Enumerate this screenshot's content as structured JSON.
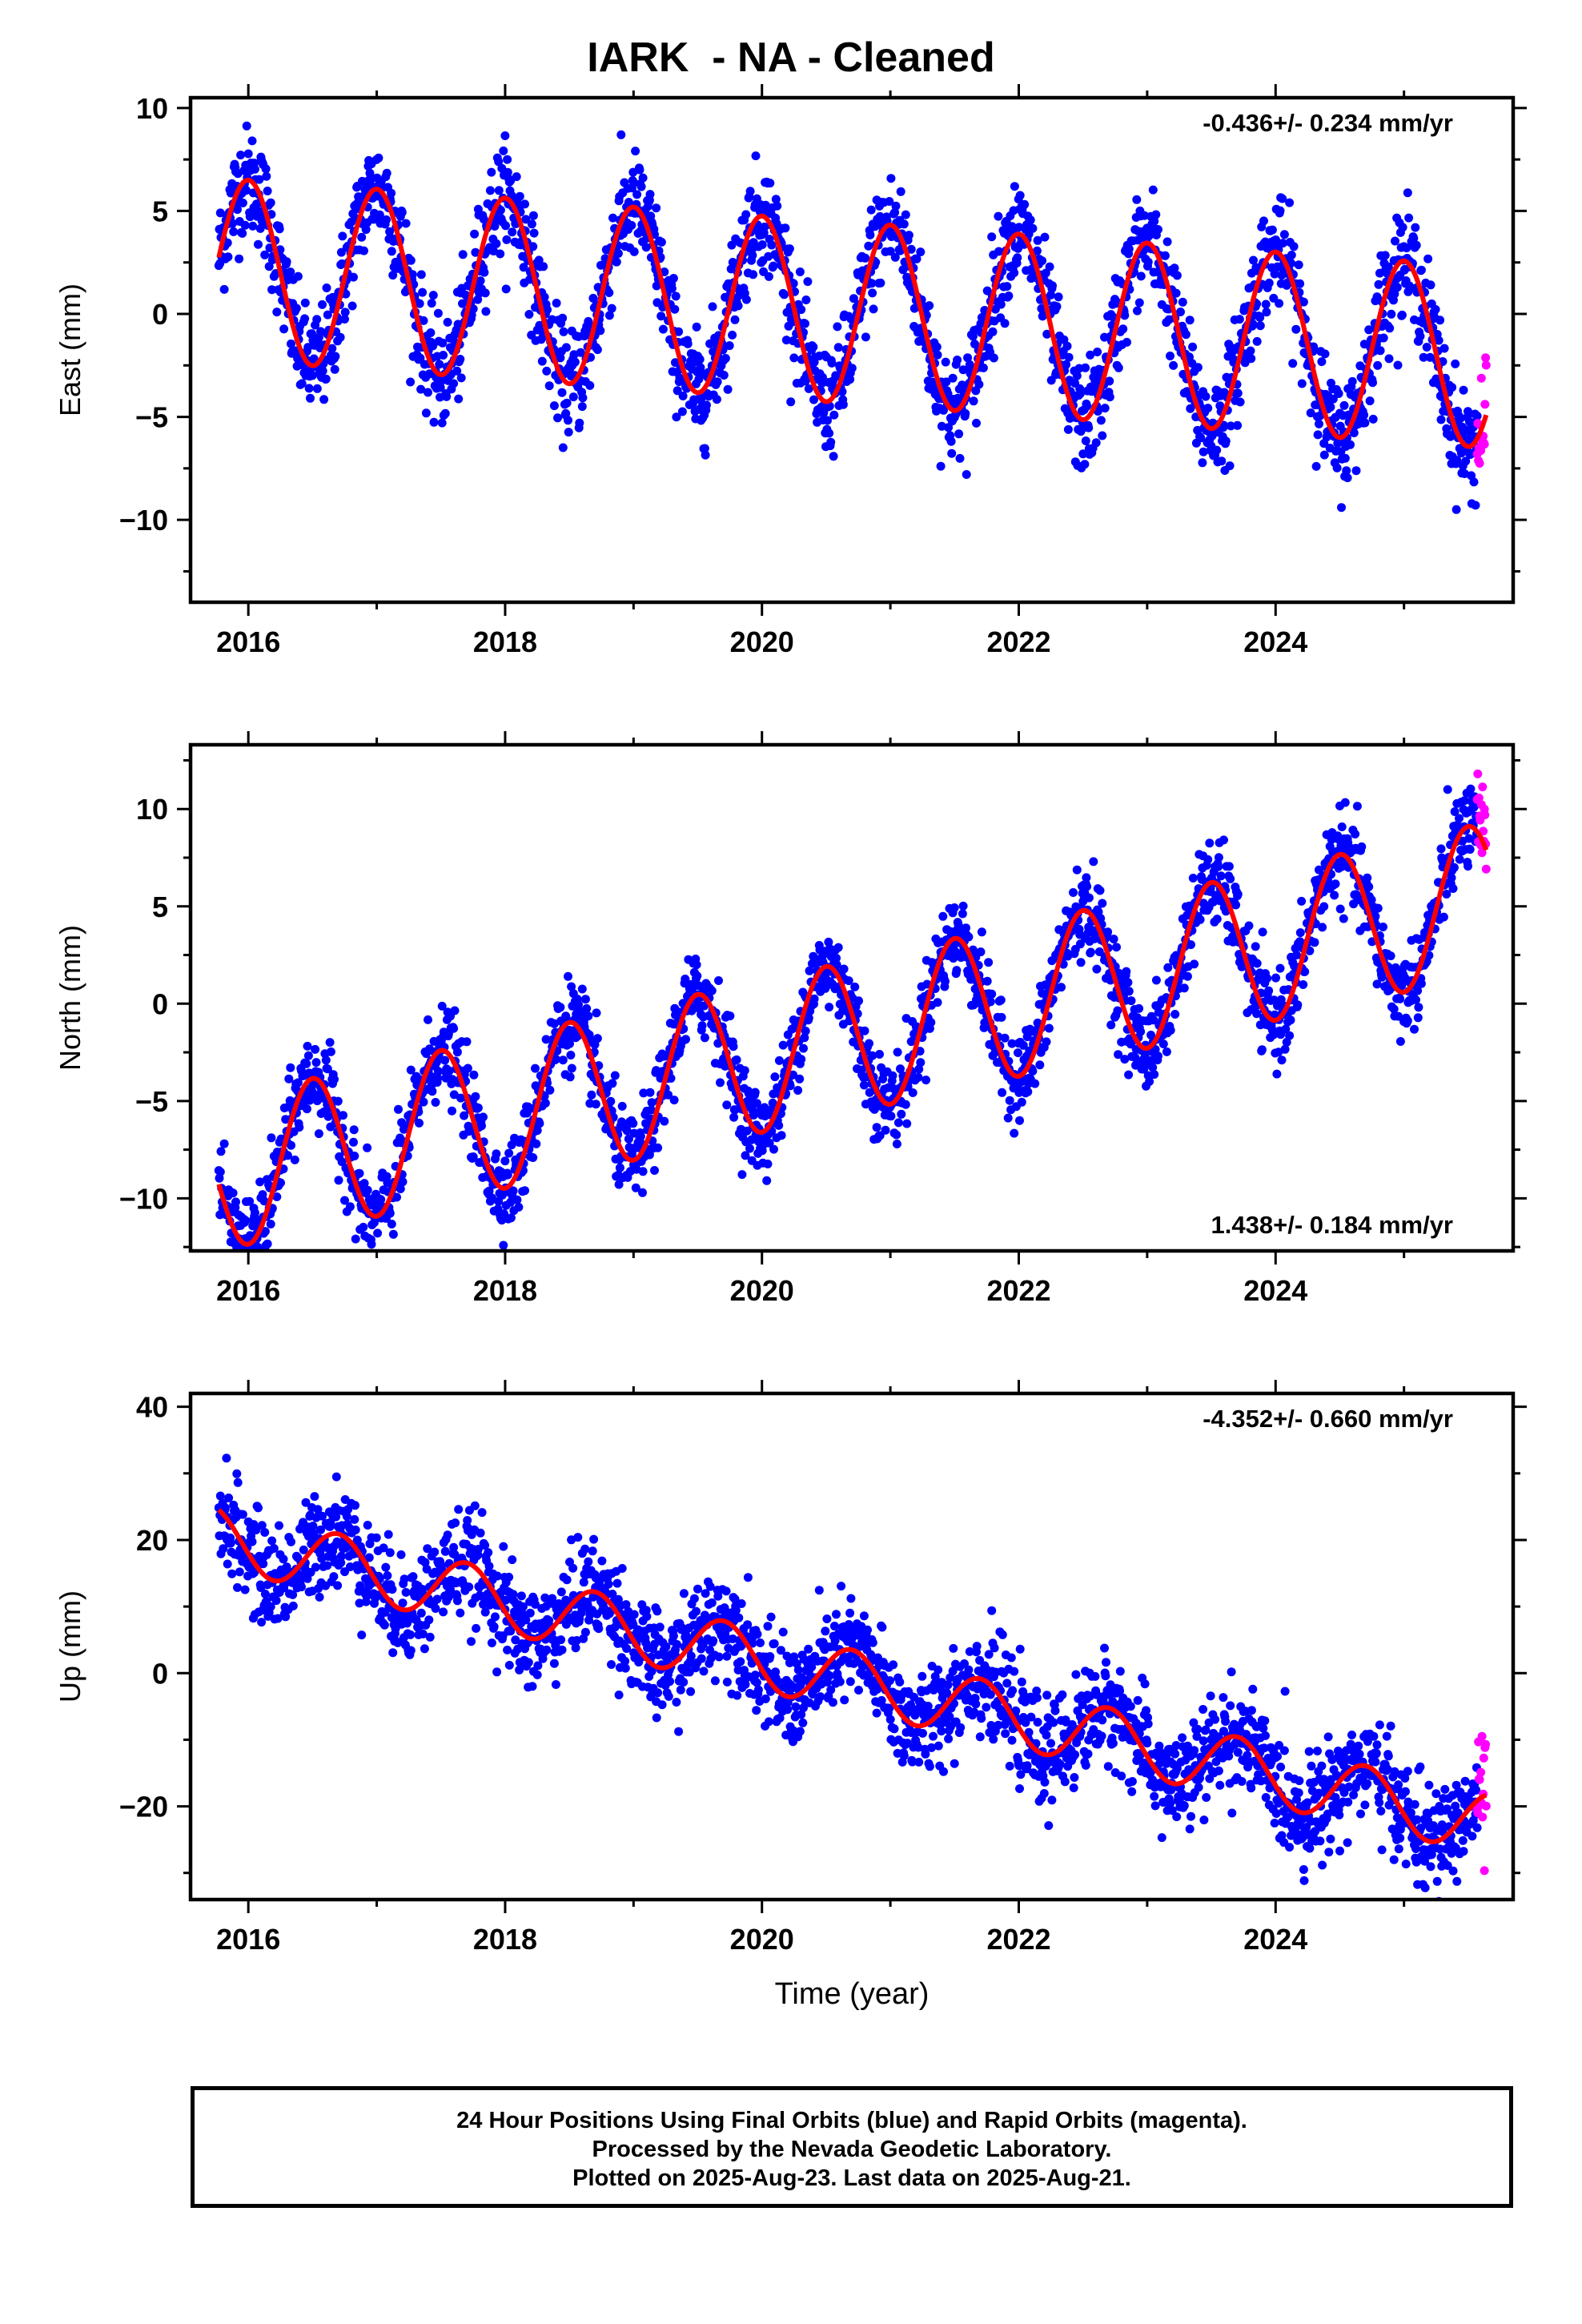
{
  "title": "IARK  - NA - Cleaned",
  "footer": {
    "line1": "24 Hour Positions Using Final Orbits (blue) and Rapid Orbits (magenta).",
    "line2": "Processed by the Nevada Geodetic Laboratory.",
    "line3": "Plotted on 2025-Aug-23. Last data on 2025-Aug-21."
  },
  "colors": {
    "final_orbits": "#0000ff",
    "rapid_orbits": "#ff00ff",
    "model_fit": "#ff0000",
    "frame": "#000000"
  },
  "chart_data": [
    {
      "type": "scatter",
      "name": "east",
      "ylabel": "East (mm)",
      "xlabel": "",
      "rate_label": "-0.436+/- 0.234 mm/yr",
      "rate_position": "top-right",
      "xlim": [
        2015.55,
        2025.85
      ],
      "ylim": [
        -14,
        10.5
      ],
      "xticks": [
        2016,
        2018,
        2020,
        2022,
        2024
      ],
      "yticks": [
        -10,
        -5,
        0,
        5,
        10
      ],
      "grid": false,
      "time_span": [
        2015.77,
        2025.64
      ],
      "rapid_span": [
        2025.57,
        2025.64
      ],
      "model": {
        "offset": 0.05,
        "rate": -0.436,
        "amplitude": 4.4,
        "phase_year": 0.0,
        "noise": 1.3,
        "ref_year": 2020.7,
        "n_points": 2300
      },
      "series": [
        {
          "name": "Final Orbits",
          "color": "#0000ff"
        },
        {
          "name": "Rapid Orbits",
          "color": "#ff00ff"
        },
        {
          "name": "Model fit",
          "color": "#ff0000"
        }
      ]
    },
    {
      "type": "scatter",
      "name": "north",
      "ylabel": "North (mm)",
      "xlabel": "",
      "rate_label": "1.438+/- 0.184 mm/yr",
      "rate_position": "bottom-right",
      "xlim": [
        2015.55,
        2025.85
      ],
      "ylim": [
        -12.7,
        13.3
      ],
      "xticks": [
        2016,
        2018,
        2020,
        2022,
        2024
      ],
      "yticks": [
        -10,
        -5,
        0,
        5,
        10
      ],
      "grid": false,
      "time_span": [
        2015.77,
        2025.64
      ],
      "rapid_span": [
        2025.57,
        2025.64
      ],
      "model": {
        "offset": -1.7,
        "rate": 1.438,
        "amplitude": 3.9,
        "phase_year": 0.5,
        "noise": 1.1,
        "ref_year": 2020.7,
        "n_points": 2300
      },
      "series": [
        {
          "name": "Final Orbits",
          "color": "#0000ff"
        },
        {
          "name": "Rapid Orbits",
          "color": "#ff00ff"
        },
        {
          "name": "Model fit",
          "color": "#ff0000"
        }
      ]
    },
    {
      "type": "scatter",
      "name": "up",
      "ylabel": "Up (mm)",
      "xlabel": "Time (year)",
      "rate_label": "-4.352+/- 0.660 mm/yr",
      "rate_position": "top-right",
      "xlim": [
        2015.55,
        2025.85
      ],
      "ylim": [
        -34,
        42
      ],
      "xticks": [
        2016,
        2018,
        2020,
        2022,
        2024
      ],
      "yticks": [
        -20,
        0,
        20,
        40
      ],
      "grid": false,
      "time_span": [
        2015.77,
        2025.64
      ],
      "rapid_span": [
        2025.57,
        2025.64
      ],
      "model": {
        "offset": -1.1,
        "rate": -4.352,
        "amplitude": 4.6,
        "phase_year": 0.7,
        "noise": 3.8,
        "ref_year": 2020.7,
        "n_points": 2300
      },
      "series": [
        {
          "name": "Final Orbits",
          "color": "#0000ff"
        },
        {
          "name": "Rapid Orbits",
          "color": "#ff00ff"
        },
        {
          "name": "Model fit",
          "color": "#ff0000"
        }
      ]
    }
  ]
}
